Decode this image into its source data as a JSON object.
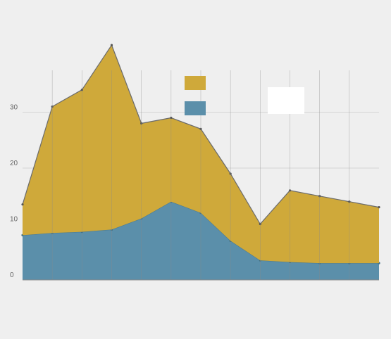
{
  "chart_data": {
    "type": "area",
    "stacked": true,
    "title": "",
    "subtitle": "",
    "xlabel": "",
    "ylabel": "",
    "categories": [
      "",
      "",
      "",
      "",
      "",
      "",
      "",
      "",
      "",
      "",
      "",
      "",
      ""
    ],
    "ylim": [
      0,
      40
    ],
    "yticks": [
      0,
      10,
      20,
      30
    ],
    "grid": true,
    "series": [
      {
        "name": "",
        "color": "#5b8faa",
        "values": [
          8,
          8.4,
          8.6,
          9,
          11,
          14,
          12,
          7,
          3.5,
          3.2,
          3,
          3,
          3
        ]
      },
      {
        "name": "",
        "color": "#cfa93a",
        "values": [
          5.5,
          22.6,
          25.4,
          33,
          17,
          15,
          15,
          12,
          6.5,
          12.8,
          12,
          11,
          10
        ]
      }
    ],
    "legend": {
      "placement": "top-right"
    },
    "top_note": "",
    "footnote": "",
    "source": ""
  }
}
